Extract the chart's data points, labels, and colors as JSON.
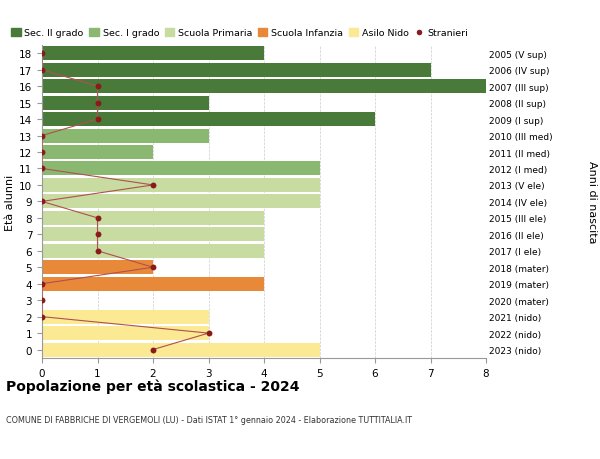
{
  "title": "Popolazione per età scolastica - 2024",
  "subtitle": "COMUNE DI FABBRICHE DI VERGEMOLI (LU) - Dati ISTAT 1° gennaio 2024 - Elaborazione TUTTITALIA.IT",
  "ylabel_left": "Età alunni",
  "ylabel_right": "Anni di nascita",
  "ages": [
    0,
    1,
    2,
    3,
    4,
    5,
    6,
    7,
    8,
    9,
    10,
    11,
    12,
    13,
    14,
    15,
    16,
    17,
    18
  ],
  "right_labels": [
    "2023 (nido)",
    "2022 (nido)",
    "2021 (nido)",
    "2020 (mater)",
    "2019 (mater)",
    "2018 (mater)",
    "2017 (I ele)",
    "2016 (II ele)",
    "2015 (III ele)",
    "2014 (IV ele)",
    "2013 (V ele)",
    "2012 (I med)",
    "2011 (II med)",
    "2010 (III med)",
    "2009 (I sup)",
    "2008 (II sup)",
    "2007 (III sup)",
    "2006 (IV sup)",
    "2005 (V sup)"
  ],
  "bar_values": [
    5,
    3,
    3,
    0,
    4,
    2,
    4,
    4,
    4,
    5,
    5,
    5,
    2,
    3,
    6,
    3,
    8,
    7,
    4
  ],
  "stranieri_values": [
    2,
    3,
    0,
    0,
    0,
    2,
    1,
    1,
    1,
    0,
    2,
    0,
    0,
    0,
    1,
    1,
    1,
    0,
    0
  ],
  "bar_colors": {
    "nido": "#fce994",
    "infanzia": "#e8893a",
    "primaria": "#c8dba0",
    "media": "#8ab870",
    "superiore": "#4a7a3a"
  },
  "stranieri_color": "#8b1a1a",
  "stranieri_line_color": "#b05050",
  "legend_labels": [
    "Sec. II grado",
    "Sec. I grado",
    "Scuola Primaria",
    "Scuola Infanzia",
    "Asilo Nido",
    "Stranieri"
  ],
  "legend_colors": [
    "#4a7a3a",
    "#8ab870",
    "#c8dba0",
    "#e8893a",
    "#fce994",
    "#8b1a1a"
  ],
  "xlim": [
    0,
    8
  ],
  "xticks": [
    0,
    1,
    2,
    3,
    4,
    5,
    6,
    7,
    8
  ],
  "background_color": "#ffffff",
  "grid_color": "#cccccc"
}
